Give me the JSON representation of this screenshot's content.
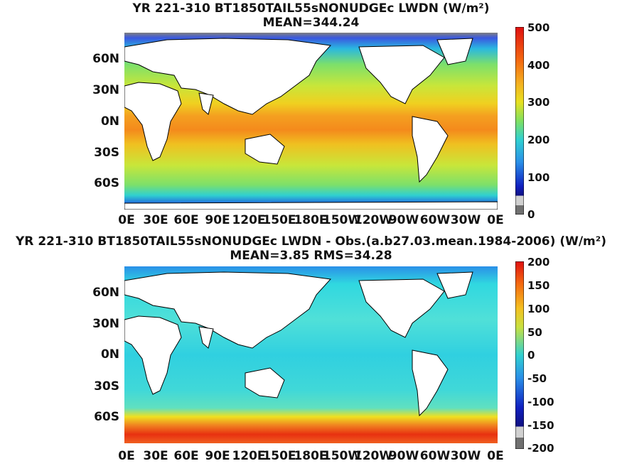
{
  "panels": [
    {
      "title": "YR 221-310 BT1850TAIL55sNONUDGEc LWDN (W/m²)",
      "subtitle": "MEAN=344.24",
      "colorbar_ticks": [
        "500",
        "400",
        "300",
        "200",
        "100",
        "0"
      ]
    },
    {
      "title": "YR 221-310 BT1850TAIL55sNONUDGEc LWDN - Obs.(a.b27.03.mean.1984-2006) (W/m²)",
      "subtitle": "MEAN=3.85 RMS=34.28",
      "colorbar_ticks": [
        "200",
        "150",
        "100",
        "50",
        "0",
        "-50",
        "-100",
        "-150",
        "-200"
      ]
    }
  ],
  "lat_ticks": [
    "60N",
    "30N",
    "0N",
    "30S",
    "60S"
  ],
  "lon_ticks": [
    "0E",
    "30E",
    "60E",
    "90E",
    "120E",
    "150E",
    "180E",
    "150W",
    "120W",
    "90W",
    "60W",
    "30W",
    "0E"
  ],
  "colors": {
    "land": "#ffffff",
    "coast": "#000000"
  }
}
